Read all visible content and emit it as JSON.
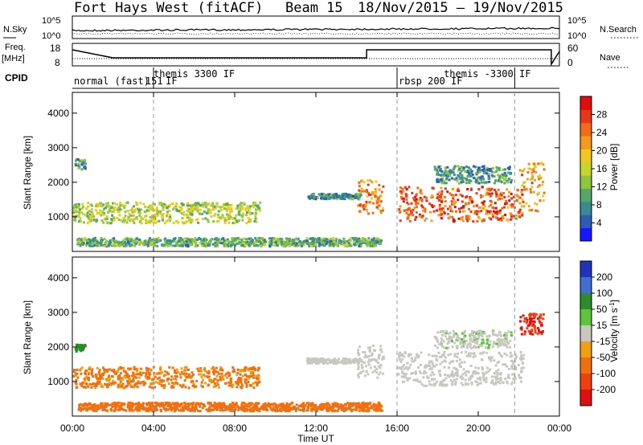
{
  "header": {
    "radar": "Fort Hays West (fitACF)",
    "beam": "Beam 15",
    "dates": "18/Nov/2015 – 19/Nov/2015"
  },
  "sky_panel": {
    "left_label": "N.Sky",
    "right_label": "N.Search",
    "left_ticks": [
      "10^5",
      "10^0"
    ],
    "right_ticks": [
      "10^5",
      "10^0"
    ]
  },
  "freq_panel": {
    "left_label_1": "Freq.",
    "left_label_2": "[MHz]",
    "right_label": "Nave",
    "left_ticks": [
      "18",
      "8"
    ],
    "right_ticks": [
      "60",
      "0"
    ]
  },
  "cpid": {
    "label": "CPID",
    "segments": [
      {
        "text": "normal (fast)",
        "start_hour": 0.0
      },
      {
        "text": "151",
        "start_hour": 3.6
      },
      {
        "text": "themis 3300 IF",
        "start_hour": 4.0
      },
      {
        "text": "IF",
        "start_hour": 4.6
      },
      {
        "text": "rbsp 200 IF",
        "start_hour": 16.0
      },
      {
        "text": "themis -3300 IF",
        "start_hour": 18.3
      }
    ],
    "divider_hours": [
      4.0,
      16.0,
      21.8
    ]
  },
  "time_axis": {
    "label": "Time UT",
    "ticks": [
      "00:00",
      "04:00",
      "08:00",
      "12:00",
      "16:00",
      "20:00",
      "00:00"
    ],
    "dashed_hours": [
      4.0,
      16.0,
      21.8
    ]
  },
  "chart_data": [
    {
      "type": "heatmap",
      "name": "power",
      "ylabel": "Slant Range [km]",
      "yticks": [
        "1000",
        "2000",
        "3000",
        "4000"
      ],
      "ylim": [
        0,
        4600
      ],
      "xlim_hours": [
        0,
        24
      ],
      "colorbar": {
        "label": "Power [dB]",
        "ticks": [
          "4",
          "8",
          "12",
          "16",
          "20",
          "24",
          "28"
        ],
        "range": [
          0,
          30
        ],
        "colors": [
          "#1616ff",
          "#2c5fb4",
          "#3a8a8f",
          "#55a66a",
          "#8ec63f",
          "#c8d62a",
          "#f2c81e",
          "#f59a1a",
          "#f06b1a",
          "#e8351a",
          "#e00d0d"
        ]
      },
      "regions": [
        {
          "h0": 0.0,
          "h1": 9.2,
          "r0": 850,
          "r1": 1450,
          "value": 14
        },
        {
          "h0": 0.2,
          "h1": 15.2,
          "r0": 180,
          "r1": 420,
          "value": 10
        },
        {
          "h0": 11.5,
          "h1": 14.2,
          "r0": 1550,
          "r1": 1700,
          "value": 7
        },
        {
          "h0": 14.0,
          "h1": 15.3,
          "r0": 1100,
          "r1": 2100,
          "value": 22
        },
        {
          "h0": 16.0,
          "h1": 22.2,
          "r0": 900,
          "r1": 1900,
          "value": 24
        },
        {
          "h0": 17.8,
          "h1": 21.6,
          "r0": 2000,
          "r1": 2500,
          "value": 8
        },
        {
          "h0": 22.0,
          "h1": 23.2,
          "r0": 1200,
          "r1": 2600,
          "value": 20
        },
        {
          "h0": 0.1,
          "h1": 0.6,
          "r0": 2400,
          "r1": 2700,
          "value": 8
        }
      ]
    },
    {
      "type": "heatmap",
      "name": "velocity",
      "ylabel": "Slant Range [km]",
      "yticks": [
        "1000",
        "2000",
        "3000",
        "4000"
      ],
      "ylim": [
        0,
        4600
      ],
      "xlim_hours": [
        0,
        24
      ],
      "colorbar": {
        "label": "Velocity [m s^-1]",
        "ticks": [
          "200",
          "100",
          "50",
          "15",
          "-15",
          "-50",
          "-100",
          "-200"
        ],
        "colors": [
          "#2233bb",
          "#3f6fd0",
          "#2a8c2a",
          "#5ec43c",
          "#c8c8c0",
          "#f0a010",
          "#f07010",
          "#ee4010",
          "#e01010"
        ]
      },
      "regions": [
        {
          "h0": 0.0,
          "h1": 9.2,
          "r0": 850,
          "r1": 1450,
          "value": -40
        },
        {
          "h0": 0.2,
          "h1": 15.2,
          "r0": 180,
          "r1": 420,
          "value": -60
        },
        {
          "h0": 11.5,
          "h1": 14.2,
          "r0": 1550,
          "r1": 1700,
          "value": 0
        },
        {
          "h0": 14.0,
          "h1": 15.3,
          "r0": 1100,
          "r1": 2100,
          "value": 0
        },
        {
          "h0": 16.0,
          "h1": 22.2,
          "r0": 900,
          "r1": 1900,
          "value": 0
        },
        {
          "h0": 17.8,
          "h1": 21.6,
          "r0": 2000,
          "r1": 2500,
          "value": 5
        },
        {
          "h0": 22.0,
          "h1": 23.2,
          "r0": 2400,
          "r1": 3000,
          "value": -150
        },
        {
          "h0": 0.1,
          "h1": 0.6,
          "r0": 1900,
          "r1": 2100,
          "value": 60
        }
      ]
    }
  ],
  "colors": {
    "grid_dash": "#9a9a9a",
    "axis": "#000000"
  }
}
